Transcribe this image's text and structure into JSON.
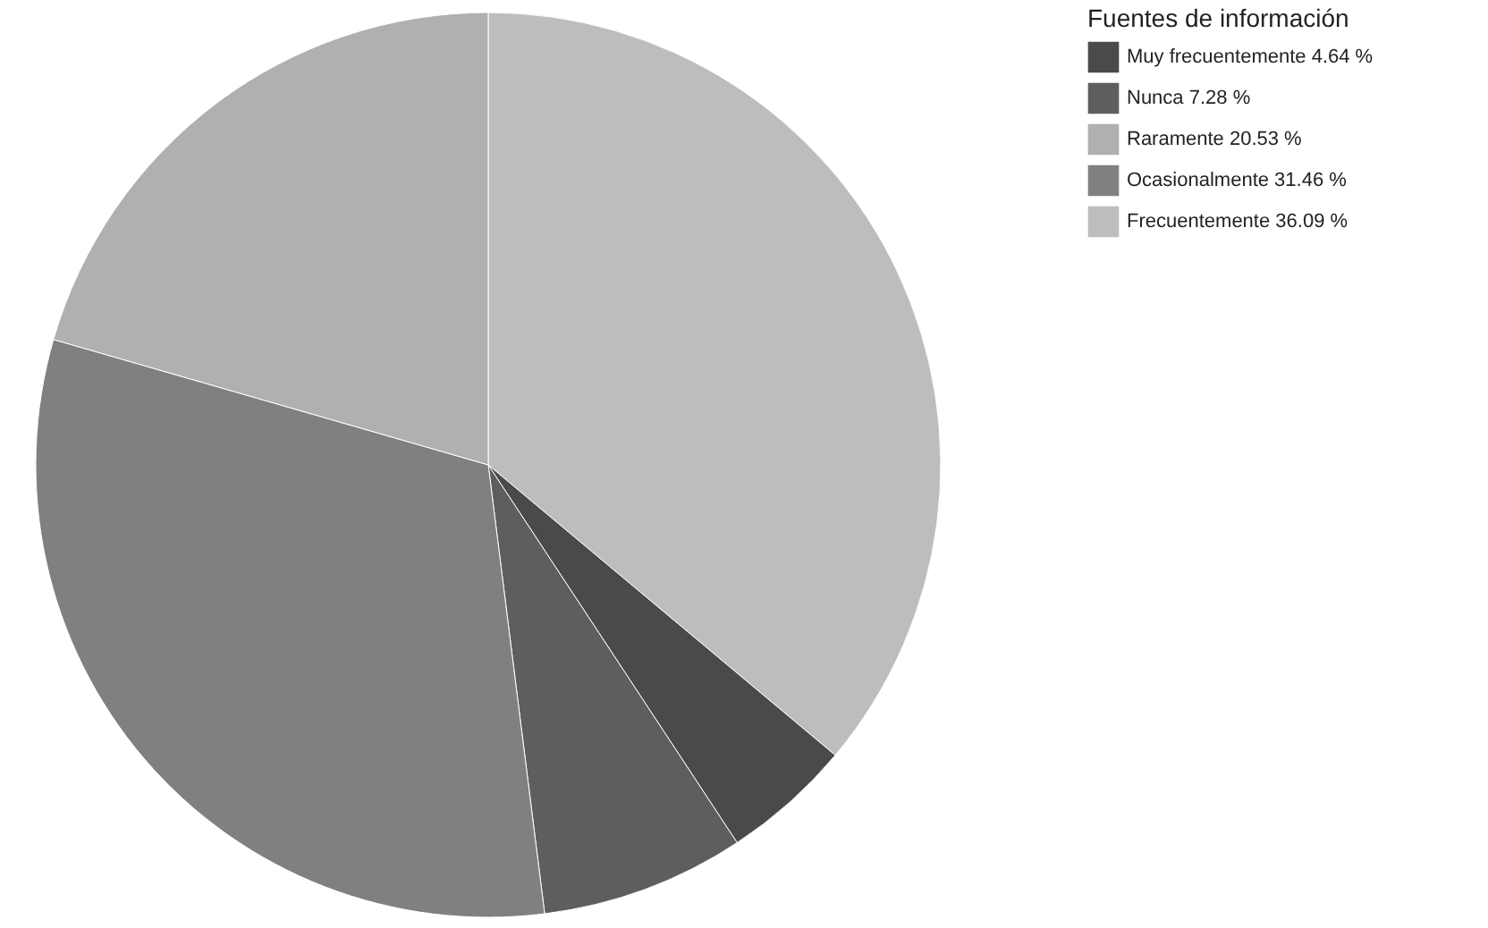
{
  "chart_data": {
    "type": "pie",
    "legend_title": "Fuentes de información",
    "legend": "right",
    "categories": [
      "Frecuentemente 36.09 %",
      "Muy frecuentemente 4.64 %",
      "Nunca 7.28 %",
      "Ocasionalmente 31.46 %",
      "Raramente 20.53 %"
    ],
    "values": [
      36.09,
      4.64,
      7.28,
      31.46,
      20.53
    ],
    "colors": [
      "#bdbdbd",
      "#4a4a4a",
      "#5e5e5e",
      "#808080",
      "#b0b0b0"
    ]
  }
}
